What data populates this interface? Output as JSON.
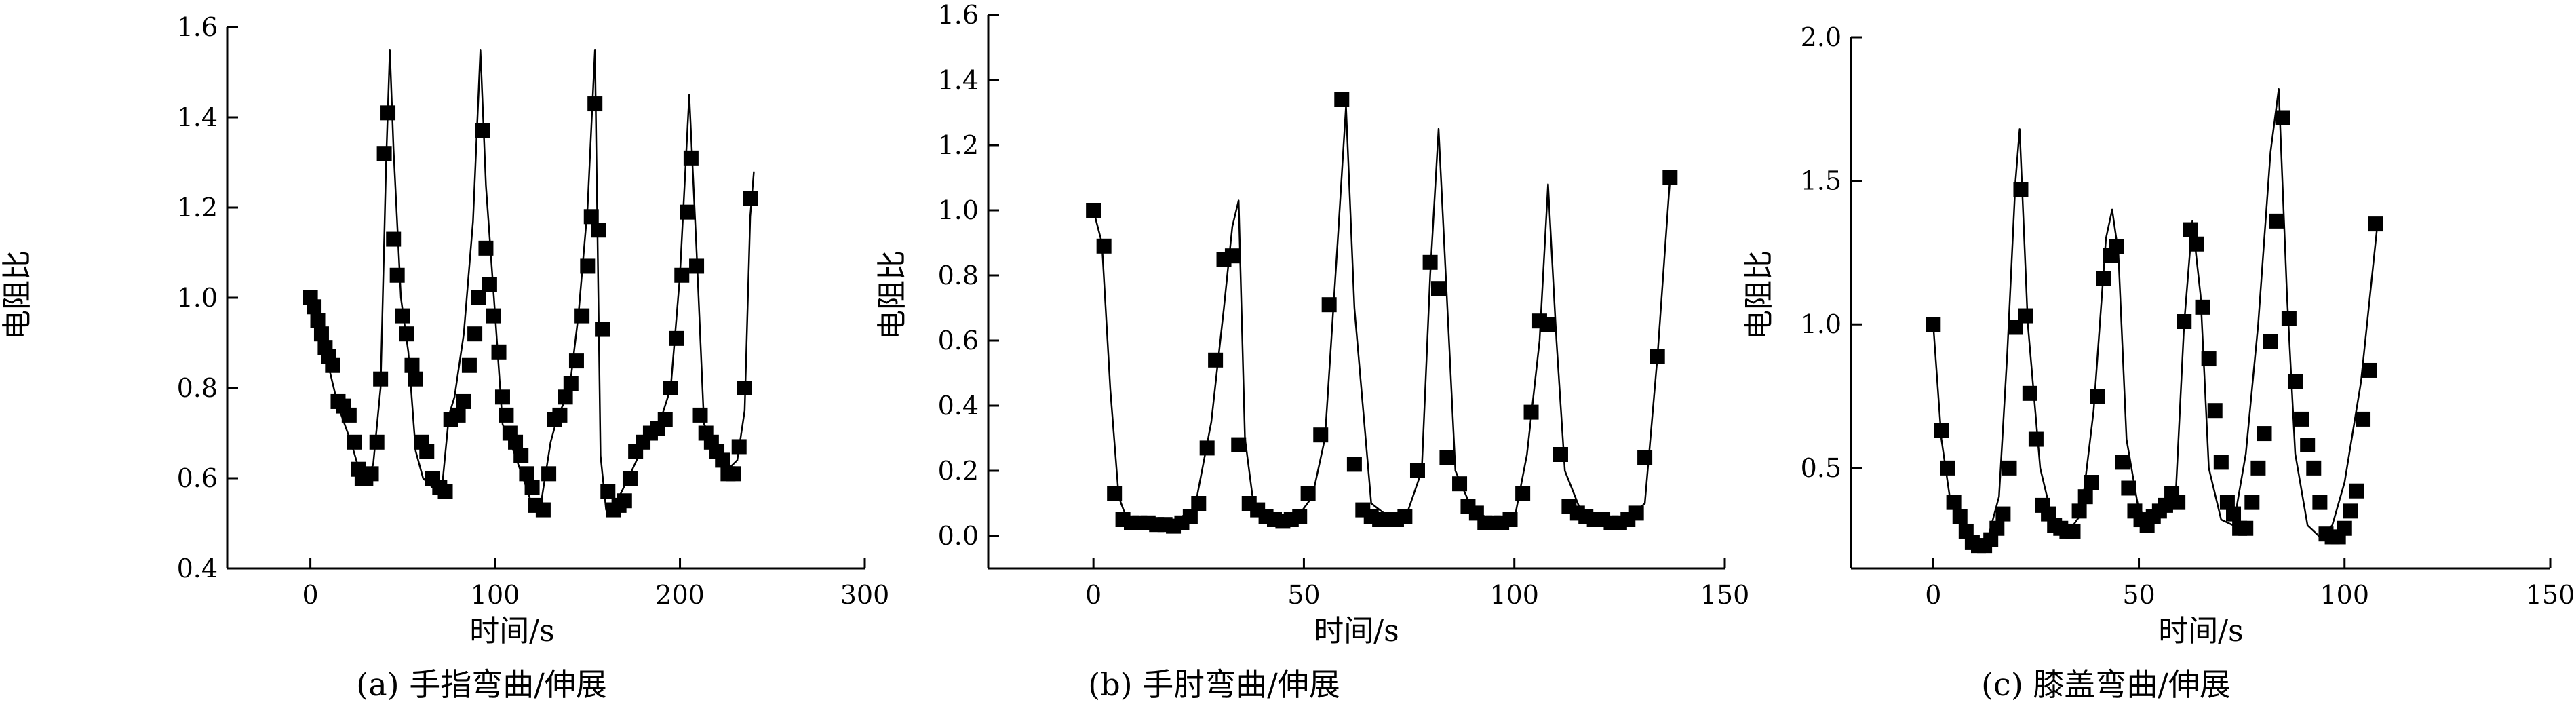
{
  "chart_data": [
    {
      "type": "line",
      "caption": "(a) 手指弯曲/伸展",
      "xlabel": "时间/s",
      "ylabel": "电阻比",
      "xlim": [
        -45,
        300
      ],
      "ylim": [
        0.4,
        1.6
      ],
      "xticks": [
        0,
        100,
        200,
        300
      ],
      "yticks": [
        0.4,
        0.6,
        0.8,
        1.0,
        1.2,
        1.4,
        1.6
      ],
      "ytick_decimals": 1,
      "marker": "square",
      "line_x": [
        0,
        8,
        15,
        22,
        27,
        30,
        34,
        38,
        41,
        43,
        45,
        49,
        53,
        57,
        61,
        66,
        71,
        75,
        78,
        83,
        88,
        92,
        95,
        100,
        104,
        110,
        116,
        120,
        125,
        130,
        134,
        140,
        145,
        150,
        154,
        157,
        160,
        166,
        172,
        180,
        188,
        195,
        200,
        205,
        209,
        213,
        220,
        226,
        231,
        235,
        238,
        240
      ],
      "line_y": [
        1.0,
        0.88,
        0.76,
        0.68,
        0.61,
        0.6,
        0.63,
        0.8,
        1.3,
        1.55,
        1.33,
        1.0,
        0.88,
        0.66,
        0.6,
        0.58,
        0.57,
        0.74,
        0.78,
        0.92,
        1.17,
        1.55,
        1.25,
        0.96,
        0.72,
        0.66,
        0.59,
        0.54,
        0.55,
        0.68,
        0.74,
        0.79,
        0.96,
        1.2,
        1.55,
        0.65,
        0.53,
        0.55,
        0.6,
        0.67,
        0.71,
        0.8,
        1.05,
        1.45,
        1.1,
        0.72,
        0.67,
        0.62,
        0.64,
        0.75,
        1.18,
        1.28
      ],
      "markers": [
        [
          0,
          1.0
        ],
        [
          2,
          0.98
        ],
        [
          4,
          0.95
        ],
        [
          6,
          0.92
        ],
        [
          8,
          0.89
        ],
        [
          10,
          0.87
        ],
        [
          12,
          0.85
        ],
        [
          15,
          0.77
        ],
        [
          18,
          0.76
        ],
        [
          21,
          0.74
        ],
        [
          24,
          0.68
        ],
        [
          26,
          0.62
        ],
        [
          28,
          0.6
        ],
        [
          30,
          0.6
        ],
        [
          33,
          0.61
        ],
        [
          36,
          0.68
        ],
        [
          38,
          0.82
        ],
        [
          40,
          1.32
        ],
        [
          42,
          1.41
        ],
        [
          45,
          1.13
        ],
        [
          47,
          1.05
        ],
        [
          50,
          0.96
        ],
        [
          52,
          0.92
        ],
        [
          55,
          0.85
        ],
        [
          57,
          0.82
        ],
        [
          60,
          0.68
        ],
        [
          63,
          0.66
        ],
        [
          66,
          0.6
        ],
        [
          70,
          0.58
        ],
        [
          73,
          0.57
        ],
        [
          76,
          0.73
        ],
        [
          80,
          0.74
        ],
        [
          83,
          0.77
        ],
        [
          86,
          0.85
        ],
        [
          89,
          0.92
        ],
        [
          91,
          1.0
        ],
        [
          93,
          1.37
        ],
        [
          95,
          1.11
        ],
        [
          97,
          1.03
        ],
        [
          99,
          0.96
        ],
        [
          102,
          0.88
        ],
        [
          104,
          0.78
        ],
        [
          106,
          0.74
        ],
        [
          108,
          0.7
        ],
        [
          111,
          0.68
        ],
        [
          114,
          0.65
        ],
        [
          117,
          0.61
        ],
        [
          120,
          0.58
        ],
        [
          122,
          0.54
        ],
        [
          126,
          0.53
        ],
        [
          129,
          0.61
        ],
        [
          132,
          0.73
        ],
        [
          135,
          0.74
        ],
        [
          138,
          0.78
        ],
        [
          141,
          0.81
        ],
        [
          144,
          0.86
        ],
        [
          147,
          0.96
        ],
        [
          150,
          1.07
        ],
        [
          152,
          1.18
        ],
        [
          154,
          1.43
        ],
        [
          156,
          1.15
        ],
        [
          158,
          0.93
        ],
        [
          161,
          0.57
        ],
        [
          164,
          0.53
        ],
        [
          167,
          0.54
        ],
        [
          170,
          0.55
        ],
        [
          173,
          0.6
        ],
        [
          176,
          0.66
        ],
        [
          180,
          0.68
        ],
        [
          184,
          0.7
        ],
        [
          188,
          0.71
        ],
        [
          192,
          0.73
        ],
        [
          195,
          0.8
        ],
        [
          198,
          0.91
        ],
        [
          201,
          1.05
        ],
        [
          204,
          1.19
        ],
        [
          206,
          1.31
        ],
        [
          209,
          1.07
        ],
        [
          211,
          0.74
        ],
        [
          214,
          0.7
        ],
        [
          217,
          0.68
        ],
        [
          220,
          0.66
        ],
        [
          223,
          0.64
        ],
        [
          226,
          0.61
        ],
        [
          229,
          0.61
        ],
        [
          232,
          0.67
        ],
        [
          235,
          0.8
        ],
        [
          238,
          1.22
        ]
      ]
    },
    {
      "type": "line",
      "caption": "(b) 手肘弯曲/伸展",
      "xlabel": "时间/s",
      "ylabel": "电阻比",
      "xlim": [
        -25,
        150
      ],
      "ylim": [
        -0.1,
        1.6
      ],
      "xticks": [
        0,
        50,
        100,
        150
      ],
      "yticks": [
        0.0,
        0.2,
        0.4,
        0.6,
        0.8,
        1.0,
        1.2,
        1.4,
        1.6
      ],
      "ytick_decimals": 1,
      "marker": "square",
      "line_x": [
        0,
        2,
        4,
        6,
        8,
        12,
        18,
        24,
        28,
        31,
        33,
        34.5,
        36,
        38,
        42,
        48,
        52,
        55,
        58,
        60,
        62,
        66,
        70,
        74,
        78,
        80,
        82,
        86,
        90,
        96,
        100,
        103,
        106,
        108,
        110,
        112,
        116,
        120,
        126,
        131,
        134,
        137
      ],
      "line_y": [
        1.0,
        0.9,
        0.45,
        0.12,
        0.05,
        0.04,
        0.04,
        0.08,
        0.35,
        0.7,
        0.95,
        1.03,
        0.3,
        0.1,
        0.06,
        0.05,
        0.12,
        0.3,
        0.9,
        1.32,
        0.7,
        0.1,
        0.06,
        0.05,
        0.2,
        0.8,
        1.25,
        0.2,
        0.08,
        0.04,
        0.05,
        0.25,
        0.6,
        1.08,
        0.6,
        0.2,
        0.07,
        0.05,
        0.04,
        0.1,
        0.55,
        1.1
      ],
      "markers": [
        [
          0,
          1.0
        ],
        [
          2.5,
          0.89
        ],
        [
          5,
          0.13
        ],
        [
          7,
          0.05
        ],
        [
          9,
          0.04
        ],
        [
          11,
          0.04
        ],
        [
          13,
          0.04
        ],
        [
          15,
          0.035
        ],
        [
          17,
          0.035
        ],
        [
          19,
          0.03
        ],
        [
          21,
          0.04
        ],
        [
          23,
          0.06
        ],
        [
          25,
          0.1
        ],
        [
          27,
          0.27
        ],
        [
          29,
          0.54
        ],
        [
          31,
          0.85
        ],
        [
          33,
          0.86
        ],
        [
          34.5,
          0.28
        ],
        [
          37,
          0.1
        ],
        [
          39,
          0.08
        ],
        [
          41,
          0.06
        ],
        [
          43,
          0.05
        ],
        [
          45,
          0.045
        ],
        [
          47,
          0.05
        ],
        [
          49,
          0.06
        ],
        [
          51,
          0.13
        ],
        [
          54,
          0.31
        ],
        [
          56,
          0.71
        ],
        [
          59,
          1.34
        ],
        [
          62,
          0.22
        ],
        [
          64,
          0.08
        ],
        [
          66,
          0.06
        ],
        [
          68,
          0.05
        ],
        [
          70,
          0.05
        ],
        [
          72,
          0.05
        ],
        [
          74,
          0.06
        ],
        [
          77,
          0.2
        ],
        [
          80,
          0.84
        ],
        [
          82,
          0.76
        ],
        [
          84,
          0.24
        ],
        [
          87,
          0.16
        ],
        [
          89,
          0.09
        ],
        [
          91,
          0.07
        ],
        [
          93,
          0.04
        ],
        [
          95,
          0.04
        ],
        [
          97,
          0.04
        ],
        [
          99,
          0.05
        ],
        [
          102,
          0.13
        ],
        [
          104,
          0.38
        ],
        [
          106,
          0.66
        ],
        [
          108,
          0.65
        ],
        [
          111,
          0.25
        ],
        [
          113,
          0.09
        ],
        [
          115,
          0.07
        ],
        [
          117,
          0.06
        ],
        [
          119,
          0.05
        ],
        [
          121,
          0.05
        ],
        [
          123,
          0.04
        ],
        [
          125,
          0.04
        ],
        [
          127,
          0.05
        ],
        [
          129,
          0.07
        ],
        [
          131,
          0.24
        ],
        [
          134,
          0.55
        ],
        [
          137,
          1.1
        ]
      ]
    },
    {
      "type": "line",
      "caption": "(c) 膝盖弯曲/伸展",
      "xlabel": "时间/s",
      "ylabel": "电阻比",
      "xlim": [
        -20,
        150
      ],
      "ylim": [
        0.15,
        2.0
      ],
      "xticks": [
        0,
        50,
        100,
        150
      ],
      "yticks": [
        0.5,
        1.0,
        1.5,
        2.0
      ],
      "ytick_decimals": 1,
      "marker": "square",
      "line_x": [
        0,
        2,
        4,
        7,
        10,
        13,
        16,
        18,
        20,
        21,
        23,
        26,
        29,
        33,
        36,
        39,
        42,
        43.5,
        45,
        47,
        50,
        54,
        57,
        59,
        61,
        63,
        65,
        67,
        70,
        73,
        76,
        79,
        82,
        84,
        86,
        88,
        91,
        94,
        97,
        100,
        104,
        108
      ],
      "line_y": [
        1.0,
        0.6,
        0.4,
        0.3,
        0.22,
        0.24,
        0.4,
        0.9,
        1.5,
        1.68,
        1.0,
        0.5,
        0.32,
        0.28,
        0.34,
        0.7,
        1.3,
        1.4,
        1.25,
        0.6,
        0.35,
        0.32,
        0.36,
        0.42,
        1.0,
        1.36,
        1.1,
        0.5,
        0.32,
        0.3,
        0.55,
        1.0,
        1.6,
        1.82,
        1.1,
        0.55,
        0.3,
        0.26,
        0.3,
        0.45,
        0.8,
        1.35
      ],
      "markers": [
        [
          0,
          1.0
        ],
        [
          2,
          0.63
        ],
        [
          3.5,
          0.5
        ],
        [
          5,
          0.38
        ],
        [
          6.5,
          0.33
        ],
        [
          8,
          0.28
        ],
        [
          9.5,
          0.24
        ],
        [
          11,
          0.23
        ],
        [
          12.5,
          0.23
        ],
        [
          14,
          0.25
        ],
        [
          15.5,
          0.29
        ],
        [
          17,
          0.34
        ],
        [
          18.5,
          0.5
        ],
        [
          20,
          0.99
        ],
        [
          21.3,
          1.47
        ],
        [
          22.5,
          1.03
        ],
        [
          23.5,
          0.76
        ],
        [
          25,
          0.6
        ],
        [
          26.5,
          0.37
        ],
        [
          28,
          0.34
        ],
        [
          29.5,
          0.3
        ],
        [
          31,
          0.29
        ],
        [
          32.5,
          0.28
        ],
        [
          34,
          0.28
        ],
        [
          35.5,
          0.35
        ],
        [
          37,
          0.4
        ],
        [
          38.5,
          0.45
        ],
        [
          40,
          0.75
        ],
        [
          41.5,
          1.16
        ],
        [
          43,
          1.24
        ],
        [
          44.5,
          1.27
        ],
        [
          46,
          0.52
        ],
        [
          47.5,
          0.43
        ],
        [
          49,
          0.35
        ],
        [
          50.5,
          0.32
        ],
        [
          52,
          0.3
        ],
        [
          53.5,
          0.33
        ],
        [
          55,
          0.35
        ],
        [
          56.5,
          0.37
        ],
        [
          58,
          0.41
        ],
        [
          59.5,
          0.38
        ],
        [
          61,
          1.01
        ],
        [
          62.5,
          1.33
        ],
        [
          64,
          1.28
        ],
        [
          65.5,
          1.06
        ],
        [
          67,
          0.88
        ],
        [
          68.5,
          0.7
        ],
        [
          70,
          0.52
        ],
        [
          71.5,
          0.38
        ],
        [
          73,
          0.34
        ],
        [
          74.5,
          0.29
        ],
        [
          76,
          0.29
        ],
        [
          77.5,
          0.38
        ],
        [
          79,
          0.5
        ],
        [
          80.5,
          0.62
        ],
        [
          82,
          0.94
        ],
        [
          83.5,
          1.36
        ],
        [
          85,
          1.72
        ],
        [
          86.5,
          1.02
        ],
        [
          88,
          0.8
        ],
        [
          89.5,
          0.67
        ],
        [
          91,
          0.58
        ],
        [
          92.5,
          0.5
        ],
        [
          94,
          0.38
        ],
        [
          95.5,
          0.27
        ],
        [
          97,
          0.26
        ],
        [
          98.5,
          0.26
        ],
        [
          100,
          0.29
        ],
        [
          101.5,
          0.35
        ],
        [
          103,
          0.42
        ],
        [
          104.5,
          0.67
        ],
        [
          106,
          0.84
        ],
        [
          107.5,
          1.35
        ]
      ]
    }
  ]
}
